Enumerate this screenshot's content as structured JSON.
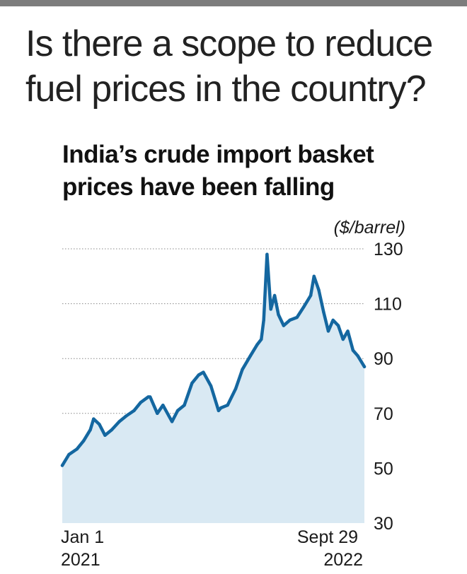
{
  "headline": {
    "line1": "Is there a scope to reduce",
    "line2": "fuel prices in the country?"
  },
  "subtitle": {
    "line1": "India’s crude import basket",
    "line2": "prices have been falling"
  },
  "colors": {
    "line": "#1467a0",
    "area": "#d9e9f3",
    "top_bar": "#7d7d7d",
    "grid": "#888888"
  },
  "chart_data": {
    "type": "area",
    "title": "India’s crude import basket prices have been falling",
    "ylabel": "($/barrel)",
    "ylim": [
      30,
      130
    ],
    "yticks": [
      130,
      110,
      90,
      70,
      50,
      30
    ],
    "x_start_label": [
      "Jan 1",
      "2021"
    ],
    "x_end_label": [
      "Sept 29",
      "2022"
    ],
    "grid": "horizontal dotted",
    "x": [
      "2021-01-01",
      "2021-01-15",
      "2021-02-01",
      "2021-02-15",
      "2021-03-01",
      "2021-03-08",
      "2021-03-20",
      "2021-04-01",
      "2021-04-15",
      "2021-05-01",
      "2021-05-15",
      "2021-06-01",
      "2021-06-15",
      "2021-07-01",
      "2021-07-05",
      "2021-07-20",
      "2021-08-01",
      "2021-08-20",
      "2021-09-01",
      "2021-09-15",
      "2021-10-01",
      "2021-10-15",
      "2021-10-25",
      "2021-11-10",
      "2021-11-26",
      "2021-12-01",
      "2021-12-15",
      "2022-01-01",
      "2022-01-15",
      "2022-02-01",
      "2022-02-15",
      "2022-02-24",
      "2022-03-01",
      "2022-03-08",
      "2022-03-16",
      "2022-03-24",
      "2022-04-01",
      "2022-04-12",
      "2022-04-25",
      "2022-05-10",
      "2022-05-25",
      "2022-06-08",
      "2022-06-15",
      "2022-06-25",
      "2022-07-05",
      "2022-07-15",
      "2022-07-25",
      "2022-08-05",
      "2022-08-15",
      "2022-08-25",
      "2022-09-05",
      "2022-09-15",
      "2022-09-29"
    ],
    "series": [
      {
        "values": [
          51,
          55,
          57,
          60,
          64,
          68,
          66,
          62,
          64,
          67,
          69,
          71,
          74,
          76,
          76,
          70,
          73,
          67,
          71,
          73,
          81,
          84,
          85,
          80,
          71,
          72,
          73,
          79,
          86,
          91,
          95,
          97,
          104,
          128,
          108,
          113,
          106,
          102,
          104,
          105,
          109,
          113,
          120,
          115,
          107,
          100,
          104,
          102,
          97,
          100,
          93,
          91,
          87
        ]
      }
    ]
  }
}
